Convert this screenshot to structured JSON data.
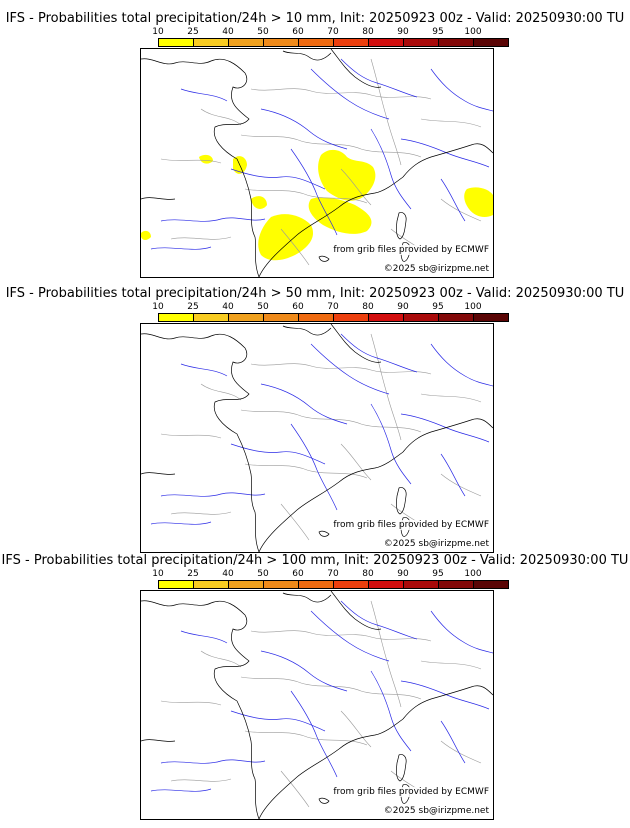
{
  "colorbar": {
    "ticks": [
      "10",
      "25",
      "40",
      "50",
      "60",
      "70",
      "80",
      "90",
      "95",
      "100"
    ],
    "colors": [
      "#ffff00",
      "#f8cc22",
      "#f0a11e",
      "#ef8a1a",
      "#ef6a10",
      "#ec3f0e",
      "#d20e0e",
      "#a90a0a",
      "#820808",
      "#5a0505"
    ]
  },
  "panels": [
    {
      "title": "IFS - Probabilities total precipitation/24h > 10 mm, Init: 20250923 00z - Valid: 20250930:00 TU",
      "credit_source": "from grib files provided by ECMWF",
      "credit_copy": "©2025 sb@irizpme.net",
      "has_precip": true
    },
    {
      "title": "IFS - Probabilities total precipitation/24h > 50 mm, Init: 20250923 00z - Valid: 20250930:00 TU",
      "credit_source": "from grib files provided by ECMWF",
      "credit_copy": "©2025 sb@irizpme.net",
      "has_precip": false
    },
    {
      "title": "IFS - Probabilities total precipitation/24h > 100 mm, Init: 20250923 00z - Valid: 20250930:00 TU",
      "credit_source": "from grib files provided by ECMWF",
      "credit_copy": "©2025 sb@irizpme.net",
      "has_precip": false
    }
  ],
  "colors": {
    "coast": "#000000",
    "river": "#2a2ae6",
    "border": "#9a9a9a",
    "precip": "#ffff00"
  }
}
